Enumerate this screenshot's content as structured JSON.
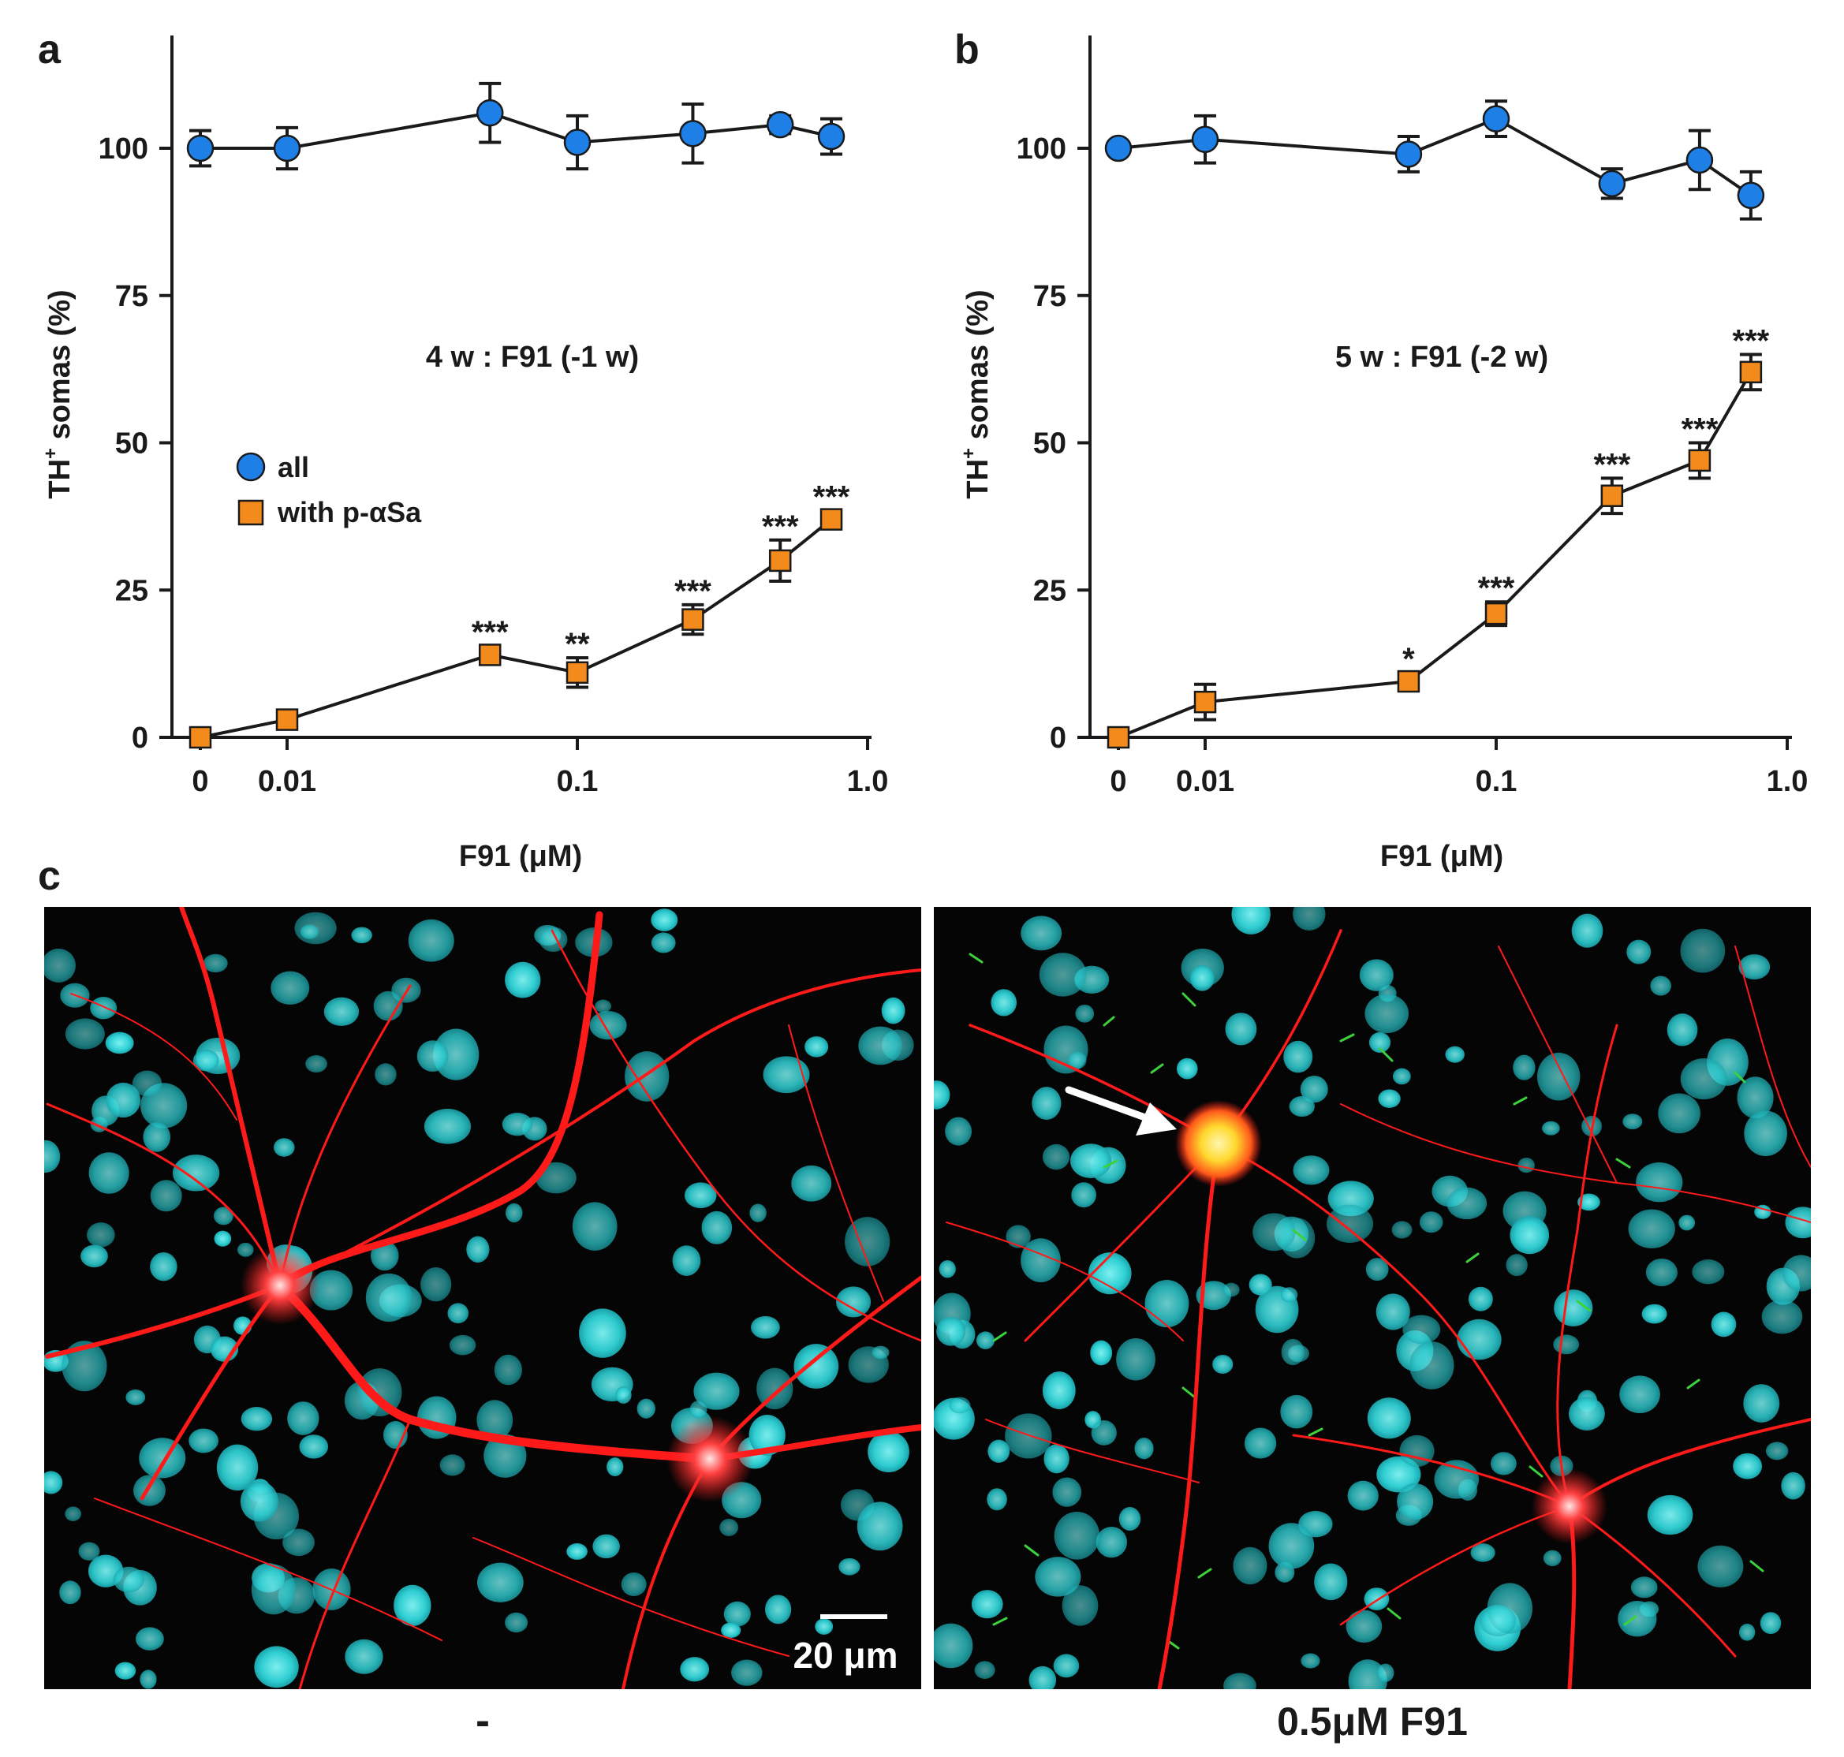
{
  "panel_labels": {
    "a": "a",
    "b": "b",
    "c": "c"
  },
  "legend": {
    "all": "all",
    "with_p": "with p-αSa"
  },
  "chart_data": [
    {
      "type": "line",
      "panel": "a",
      "annotation": "4 w : F91 (-1 w)",
      "xlabel": "F91 (μM)",
      "ylabel_main": "TH",
      "ylabel_sup": "+",
      "ylabel_rest": " somas (%)",
      "x_scale": "log with 0 break",
      "x_ticks": [
        "0",
        "0.01",
        "0.1",
        "1.0"
      ],
      "y_ticks": [
        "0",
        "25",
        "50",
        "75",
        "100"
      ],
      "ylim": [
        0,
        115
      ],
      "series": [
        {
          "name": "all",
          "color": "#1e7fe6",
          "marker": "circle",
          "x": [
            0,
            0.01,
            0.05,
            0.1,
            0.25,
            0.5,
            0.75
          ],
          "y": [
            100,
            100,
            106,
            101,
            102.5,
            104,
            102
          ],
          "err": [
            3,
            3.5,
            5,
            4.5,
            5,
            1.5,
            3
          ],
          "sig": [
            "",
            "",
            "",
            "",
            "",
            "",
            ""
          ]
        },
        {
          "name": "with p-αSa",
          "color": "#f28a1c",
          "marker": "square",
          "x": [
            0,
            0.01,
            0.05,
            0.1,
            0.25,
            0.5,
            0.75
          ],
          "y": [
            0,
            3,
            14,
            11,
            20,
            30,
            37
          ],
          "err": [
            0,
            1.5,
            1.5,
            2.5,
            2.5,
            3.5,
            1.5
          ],
          "sig": [
            "",
            "",
            "***",
            "**",
            "***",
            "***",
            "***"
          ]
        }
      ]
    },
    {
      "type": "line",
      "panel": "b",
      "annotation": "5 w : F91 (-2 w)",
      "xlabel": "F91 (μM)",
      "ylabel_main": "TH",
      "ylabel_sup": "+",
      "ylabel_rest": " somas (%)",
      "x_scale": "log with 0 break",
      "x_ticks": [
        "0",
        "0.01",
        "0.1",
        "1.0"
      ],
      "y_ticks": [
        "0",
        "25",
        "50",
        "75",
        "100"
      ],
      "ylim": [
        0,
        115
      ],
      "series": [
        {
          "name": "all",
          "color": "#1e7fe6",
          "marker": "circle",
          "x": [
            0,
            0.01,
            0.05,
            0.1,
            0.25,
            0.5,
            0.75
          ],
          "y": [
            100,
            101.5,
            99,
            105,
            94,
            98,
            92
          ],
          "err": [
            1,
            4,
            3,
            3,
            2.5,
            5,
            4
          ],
          "sig": [
            "",
            "",
            "",
            "",
            "",
            "",
            ""
          ]
        },
        {
          "name": "with p-αSa",
          "color": "#f28a1c",
          "marker": "square",
          "x": [
            0,
            0.01,
            0.05,
            0.1,
            0.25,
            0.5,
            0.75
          ],
          "y": [
            0,
            6,
            9.5,
            21,
            41,
            47,
            62
          ],
          "err": [
            0,
            3,
            1.5,
            2,
            3,
            3,
            3
          ],
          "sig": [
            "",
            "",
            "*",
            "***",
            "***",
            "***",
            "***"
          ]
        }
      ]
    }
  ],
  "micrographs": {
    "left_caption": "-",
    "right_caption": "0.5μM F91",
    "scale_bar": "20 μm",
    "colors": {
      "background": "#050505",
      "neuron": "#ff1a1a",
      "nuclei": "#2fd8d8",
      "aggregate": "#ffe033",
      "fibril": "#3cd23c"
    }
  }
}
